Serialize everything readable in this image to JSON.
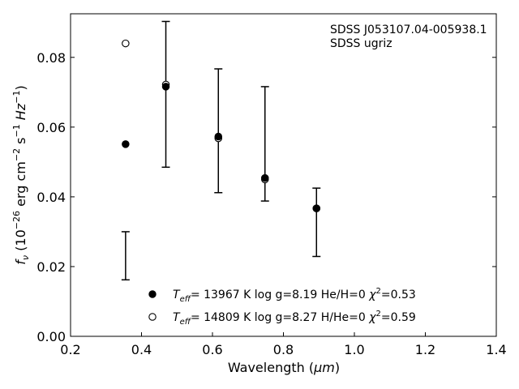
{
  "chart_data": {
    "type": "scatter",
    "title": "",
    "annotation_lines": [
      "SDSS J053107.04-005938.1",
      "SDSS ugriz"
    ],
    "xlabel_prefix": "Wavelength (",
    "xlabel_unit": "μm",
    "xlabel_suffix": ")",
    "ylabel": {
      "f": "f",
      "nu": "ν",
      "open": " (10",
      "exp1": "−26",
      "mid1": " erg cm",
      "exp2": "−2",
      "mid2": " s",
      "exp3": "−1",
      "mid3": " Hz",
      "exp4": "−1",
      "close": ")"
    },
    "xlim": [
      0.2,
      1.4
    ],
    "ylim": [
      0.0,
      0.0925
    ],
    "xticks": [
      0.2,
      0.4,
      0.6,
      0.8,
      1.0,
      1.2,
      1.4
    ],
    "xtick_labels": [
      "0.2",
      "0.4",
      "0.6",
      "0.8",
      "1.0",
      "1.2",
      "1.4"
    ],
    "yticks": [
      0.0,
      0.02,
      0.04,
      0.06,
      0.08
    ],
    "ytick_labels": [
      "0.00",
      "0.02",
      "0.04",
      "0.06",
      "0.08"
    ],
    "grid": false,
    "legend_placement": "bottom-center",
    "observed": {
      "x": [
        0.3551,
        0.4686,
        0.6166,
        0.748,
        0.8932
      ],
      "y_low": [
        0.0162,
        0.0485,
        0.0412,
        0.0388,
        0.0229
      ],
      "y_high": [
        0.03,
        0.0903,
        0.0767,
        0.0716,
        0.0425
      ]
    },
    "series": [
      {
        "marker": "filled",
        "teff_value": "= 13967 K  log g=8.19  He/H=0  ",
        "chi_value": "=0.53",
        "x": [
          0.3551,
          0.4686,
          0.6166,
          0.748,
          0.8932
        ],
        "y": [
          0.0551,
          0.0716,
          0.0573,
          0.0454,
          0.0367
        ]
      },
      {
        "marker": "open",
        "teff_value": "= 14809 K  log g=8.27  H/He=0  ",
        "chi_value": "=0.59",
        "x": [
          0.3551,
          0.4686,
          0.6166,
          0.748,
          0.8932
        ],
        "y": [
          0.084,
          0.0722,
          0.0568,
          0.045,
          0.0367
        ]
      }
    ],
    "legend_symbols": {
      "T": "T",
      "eff": "eff",
      "chi": "χ",
      "two": "2"
    },
    "colors": {
      "axis": "#000000",
      "marker": "#000000",
      "background": "#ffffff"
    }
  }
}
